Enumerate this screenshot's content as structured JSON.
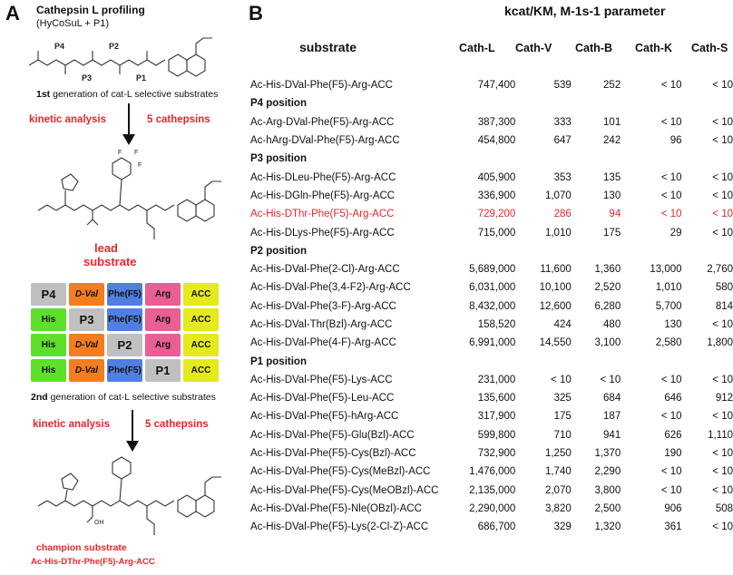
{
  "panel_a": {
    "letter": "A",
    "title": "Cathepsin L profiling",
    "subtitle": "(HyCoSuL + P1)",
    "positions": [
      "P4",
      "P3",
      "P2",
      "P1"
    ],
    "gen1_bold": "1st",
    "gen1_rest": " generation of cat-L selective substrates",
    "arrow1_left": "kinetic analysis",
    "arrow1_right": "5 cathepsins",
    "lead_line1": "lead",
    "lead_line2": "substrate",
    "grid": [
      [
        "P4",
        "D-Val",
        "Phe(F5)",
        "Arg",
        "ACC"
      ],
      [
        "His",
        "P3",
        "Phe(F5)",
        "Arg",
        "ACC"
      ],
      [
        "His",
        "D-Val",
        "P2",
        "Arg",
        "ACC"
      ],
      [
        "His",
        "D-Val",
        "Phe(F5)",
        "P1",
        "ACC"
      ]
    ],
    "gen2_bold": "2nd",
    "gen2_rest": " generation of cat-L selective substrates",
    "arrow2_left": "kinetic analysis",
    "arrow2_right": "5 cathepsins",
    "champion_label": "champion substrate",
    "champion_seq": "Ac-His-DThr-Phe(F5)-Arg-ACC",
    "colors": {
      "accent_red": "#e8262b",
      "grey": "#c0c0c0",
      "orange": "#f47d20",
      "blue": "#4f7fe0",
      "pink": "#e85e95",
      "yellow": "#e4ea1c",
      "green": "#5ee02a"
    }
  },
  "panel_b": {
    "letter": "B",
    "parameter_title": "kcat/KM, M-1s-1 parameter",
    "substrate_header": "substrate",
    "columns": [
      "Cath-L",
      "Cath-V",
      "Cath-B",
      "Cath-K",
      "Cath-S"
    ],
    "rows": [
      {
        "type": "data",
        "substrate": "Ac-His-DVal-Phe(F5)-Arg-ACC",
        "values": [
          "747,400",
          "539",
          "252",
          "< 10",
          "< 10"
        ]
      },
      {
        "type": "section",
        "label": "P4 position"
      },
      {
        "type": "data",
        "substrate": "Ac-Arg-DVal-Phe(F5)-Arg-ACC",
        "values": [
          "387,300",
          "333",
          "101",
          "< 10",
          "< 10"
        ]
      },
      {
        "type": "data",
        "substrate": "Ac-hArg-DVal-Phe(F5)-Arg-ACC",
        "values": [
          "454,800",
          "647",
          "242",
          "96",
          "< 10"
        ]
      },
      {
        "type": "section",
        "label": "P3 position"
      },
      {
        "type": "data",
        "substrate": "Ac-His-DLeu-Phe(F5)-Arg-ACC",
        "values": [
          "405,900",
          "353",
          "135",
          "< 10",
          "< 10"
        ]
      },
      {
        "type": "data",
        "substrate": "Ac-His-DGln-Phe(F5)-Arg-ACC",
        "values": [
          "336,900",
          "1,070",
          "130",
          "< 10",
          "< 10"
        ]
      },
      {
        "type": "data",
        "highlight": true,
        "substrate": "Ac-His-DThr-Phe(F5)-Arg-ACC",
        "values": [
          "729,200",
          "286",
          "94",
          "< 10",
          "< 10"
        ]
      },
      {
        "type": "data",
        "substrate": "Ac-His-DLys-Phe(F5)-Arg-ACC",
        "values": [
          "715,000",
          "1,010",
          "175",
          "29",
          "< 10"
        ]
      },
      {
        "type": "section",
        "label": "P2 position"
      },
      {
        "type": "data",
        "substrate": "Ac-His-DVal-Phe(2-Cl)-Arg-ACC",
        "values": [
          "5,689,000",
          "11,600",
          "1,360",
          "13,000",
          "2,760"
        ]
      },
      {
        "type": "data",
        "substrate": "Ac-His-DVal-Phe(3,4-F2)-Arg-ACC",
        "values": [
          "6,031,000",
          "10,100",
          "2,520",
          "1,010",
          "580"
        ]
      },
      {
        "type": "data",
        "substrate": "Ac-His-DVal-Phe(3-F)-Arg-ACC",
        "values": [
          "8,432,000",
          "12,600",
          "6,280",
          "5,700",
          "814"
        ]
      },
      {
        "type": "data",
        "substrate": "Ac-His-DVal-Thr(Bzl)-Arg-ACC",
        "values": [
          "158,520",
          "424",
          "480",
          "130",
          "< 10"
        ]
      },
      {
        "type": "data",
        "substrate": "Ac-His-DVal-Phe(4-F)-Arg-ACC",
        "values": [
          "6,991,000",
          "14,550",
          "3,100",
          "2,580",
          "1,800"
        ]
      },
      {
        "type": "section",
        "label": "P1 position"
      },
      {
        "type": "data",
        "substrate": "Ac-His-DVal-Phe(F5)-Lys-ACC",
        "values": [
          "231,000",
          "< 10",
          "< 10",
          "< 10",
          "< 10"
        ]
      },
      {
        "type": "data",
        "substrate": "Ac-His-DVal-Phe(F5)-Leu-ACC",
        "values": [
          "135,600",
          "325",
          "684",
          "646",
          "912"
        ]
      },
      {
        "type": "data",
        "substrate": "Ac-His-DVal-Phe(F5)-hArg-ACC",
        "values": [
          "317,900",
          "175",
          "187",
          "< 10",
          "< 10"
        ]
      },
      {
        "type": "data",
        "substrate": "Ac-His-DVal-Phe(F5)-Glu(Bzl)-ACC",
        "values": [
          "599,800",
          "710",
          "941",
          "626",
          "1,110"
        ]
      },
      {
        "type": "data",
        "substrate": "Ac-His-DVal-Phe(F5)-Cys(Bzl)-ACC",
        "values": [
          "732,900",
          "1,250",
          "1,370",
          "190",
          "< 10"
        ]
      },
      {
        "type": "data",
        "substrate": "Ac-His-DVal-Phe(F5)-Cys(MeBzl)-ACC",
        "values": [
          "1,476,000",
          "1,740",
          "2,290",
          "< 10",
          "< 10"
        ]
      },
      {
        "type": "data",
        "substrate": "Ac-His-DVal-Phe(F5)-Cys(MeOBzl)-ACC",
        "values": [
          "2,135,000",
          "2,070",
          "3,800",
          "< 10",
          "< 10"
        ]
      },
      {
        "type": "data",
        "substrate": "Ac-His-DVal-Phe(F5)-Nle(OBzl)-ACC",
        "values": [
          "2,290,000",
          "3,820",
          "2,500",
          "906",
          "508"
        ]
      },
      {
        "type": "data",
        "substrate": "Ac-His-DVal-Phe(F5)-Lys(2-Cl-Z)-ACC",
        "values": [
          "686,700",
          "329",
          "1,320",
          "361",
          "< 10"
        ]
      }
    ]
  }
}
